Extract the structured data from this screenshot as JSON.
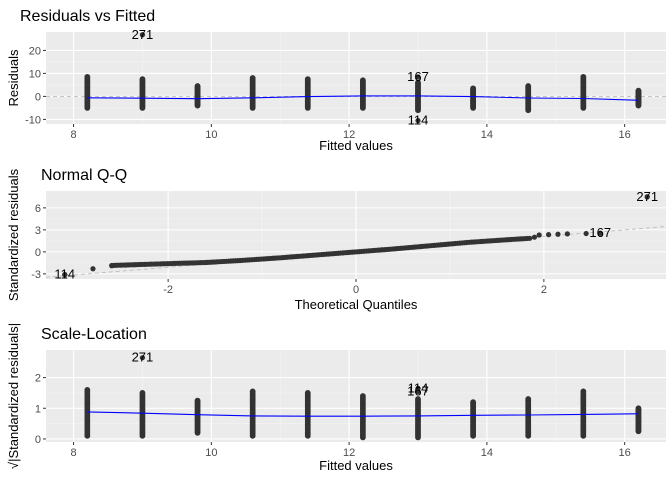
{
  "chart_data": [
    {
      "type": "scatter",
      "title": "Residuals vs Fitted",
      "xlabel": "Fitted values",
      "ylabel": "Residuals",
      "xlim": [
        7.6,
        16.6
      ],
      "ylim": [
        -12,
        28
      ],
      "xticks": [
        8,
        10,
        12,
        14,
        16
      ],
      "yticks": [
        -10,
        0,
        10,
        20
      ],
      "xtick_labels": [
        "8",
        "10",
        "12",
        "14",
        "16"
      ],
      "ytick_labels": [
        "-10",
        "0",
        "10",
        "20"
      ],
      "grid": true,
      "reference_line": {
        "type": "hline",
        "y": 0,
        "style": "dashed"
      },
      "groups": [
        {
          "x": 8.2,
          "min": -5,
          "max": 8.5
        },
        {
          "x": 9.0,
          "min": -5,
          "max": 7.5
        },
        {
          "x": 9.8,
          "min": -4,
          "max": 4.5
        },
        {
          "x": 10.6,
          "min": -5,
          "max": 8
        },
        {
          "x": 11.4,
          "min": -5,
          "max": 7.5
        },
        {
          "x": 12.2,
          "min": -5,
          "max": 7
        },
        {
          "x": 13.0,
          "min": -6,
          "max": 6
        },
        {
          "x": 13.8,
          "min": -5,
          "max": 3.5
        },
        {
          "x": 14.6,
          "min": -6,
          "max": 4.5
        },
        {
          "x": 15.4,
          "min": -5,
          "max": 8.5
        },
        {
          "x": 16.2,
          "min": -4,
          "max": 2.5
        }
      ],
      "smooth": {
        "x": [
          8.2,
          9.0,
          9.8,
          10.6,
          11.4,
          12.2,
          13.0,
          13.8,
          14.6,
          15.4,
          16.2
        ],
        "y": [
          -0.6,
          -0.8,
          -1.0,
          -0.6,
          -0.1,
          0.2,
          0.2,
          -0.1,
          -0.7,
          -0.9,
          -1.7
        ]
      },
      "outliers": [
        {
          "label": "271",
          "x": 9.0,
          "y": 26.8
        },
        {
          "label": "167",
          "x": 13.0,
          "y": 8.5
        },
        {
          "label": "114",
          "x": 13.0,
          "y": -10.5
        }
      ]
    },
    {
      "type": "scatter",
      "title": "Normal Q-Q",
      "xlabel": "Theoretical Quantiles",
      "ylabel": "Standardized residuals",
      "xlim": [
        -3.3,
        3.3
      ],
      "ylim": [
        -3.7,
        8.3
      ],
      "xticks": [
        -2,
        0,
        2
      ],
      "yticks": [
        -3,
        0,
        3,
        6
      ],
      "xtick_labels": [
        "-2",
        "0",
        "2"
      ],
      "ytick_labels": [
        "-3",
        "0",
        "3",
        "6"
      ],
      "grid": true,
      "reference_line": {
        "type": "abline",
        "intercept": 0,
        "slope": 1.05,
        "style": "dashed"
      },
      "qq_curve": {
        "x": [
          -2.6,
          -2.0,
          -1.6,
          -1.2,
          -0.8,
          -0.4,
          0.0,
          0.4,
          0.8,
          1.2,
          1.6,
          1.85
        ],
        "y": [
          -1.85,
          -1.6,
          -1.45,
          -1.15,
          -0.8,
          -0.4,
          0.0,
          0.4,
          0.85,
          1.3,
          1.65,
          1.85
        ]
      },
      "tail_points": [
        {
          "x": -3.1,
          "y": -3.1
        },
        {
          "x": -2.8,
          "y": -2.3
        },
        {
          "x": -2.6,
          "y": -1.9
        },
        {
          "x": -2.45,
          "y": -1.8
        },
        {
          "x": -2.35,
          "y": -1.75
        },
        {
          "x": 1.9,
          "y": 2.0
        },
        {
          "x": 1.95,
          "y": 2.3
        },
        {
          "x": 2.05,
          "y": 2.35
        },
        {
          "x": 2.15,
          "y": 2.4
        },
        {
          "x": 2.25,
          "y": 2.45
        },
        {
          "x": 2.45,
          "y": 2.5
        },
        {
          "x": 2.6,
          "y": 2.55
        },
        {
          "x": 3.1,
          "y": 7.5
        }
      ],
      "outliers": [
        {
          "label": "271",
          "x": 3.1,
          "y": 7.5
        },
        {
          "label": "167",
          "x": 2.6,
          "y": 2.55
        },
        {
          "label": "114",
          "x": -3.1,
          "y": -3.1
        }
      ]
    },
    {
      "type": "scatter",
      "title": "Scale-Location",
      "xlabel": "Fitted values",
      "ylabel": "√|Standardized residuals|",
      "xlim": [
        7.6,
        16.6
      ],
      "ylim": [
        -0.1,
        2.9
      ],
      "xticks": [
        8,
        10,
        12,
        14,
        16
      ],
      "yticks": [
        0,
        1,
        2
      ],
      "xtick_labels": [
        "8",
        "10",
        "12",
        "14",
        "16"
      ],
      "ytick_labels": [
        "0",
        "1",
        "2"
      ],
      "grid": true,
      "groups": [
        {
          "x": 8.2,
          "min": 0.1,
          "max": 1.6
        },
        {
          "x": 9.0,
          "min": 0.1,
          "max": 1.5
        },
        {
          "x": 9.8,
          "min": 0.2,
          "max": 1.25
        },
        {
          "x": 10.6,
          "min": 0.1,
          "max": 1.55
        },
        {
          "x": 11.4,
          "min": 0.1,
          "max": 1.5
        },
        {
          "x": 12.2,
          "min": 0.05,
          "max": 1.4
        },
        {
          "x": 13.0,
          "min": 0.05,
          "max": 1.3
        },
        {
          "x": 13.8,
          "min": 0.1,
          "max": 1.2
        },
        {
          "x": 14.6,
          "min": 0.1,
          "max": 1.3
        },
        {
          "x": 15.4,
          "min": 0.1,
          "max": 1.55
        },
        {
          "x": 16.2,
          "min": 0.25,
          "max": 1.0
        }
      ],
      "smooth": {
        "x": [
          8.2,
          9.0,
          9.8,
          10.6,
          11.4,
          12.2,
          13.0,
          13.8,
          14.6,
          15.4,
          16.2
        ],
        "y": [
          0.88,
          0.84,
          0.79,
          0.75,
          0.74,
          0.74,
          0.75,
          0.77,
          0.78,
          0.8,
          0.82
        ]
      },
      "outliers": [
        {
          "label": "271",
          "x": 9.0,
          "y": 2.65
        },
        {
          "label": "114",
          "x": 13.0,
          "y": 1.65
        },
        {
          "label": "167",
          "x": 13.0,
          "y": 1.55
        }
      ]
    }
  ]
}
